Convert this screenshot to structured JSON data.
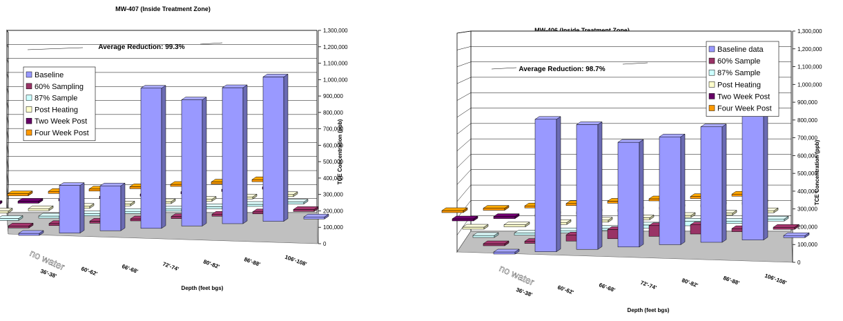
{
  "chart_data": [
    {
      "type": "bar",
      "title": "MW-407 (Inside Treatment Zone)",
      "annotation": "Average Reduction: 99.3%",
      "xlabel": "Depth (feet bgs)",
      "ylabel": "TCE Concentration (ppb)",
      "ylim": [
        0,
        1300000
      ],
      "yticks": [
        "0",
        "100,000",
        "200,000",
        "300,000",
        "400,000",
        "500,000",
        "600,000",
        "700,000",
        "800,000",
        "900,000",
        "1,000,000",
        "1,100,000",
        "1,200,000",
        "1,300,000"
      ],
      "categories": [
        "",
        "36'-38'",
        "60'-62'",
        "66'-68'",
        "72'-74'",
        "80'-82'",
        "86'-88'",
        "106'-108'"
      ],
      "floor_note": "no water",
      "legend_position": "left",
      "series": [
        {
          "name": "Baseline",
          "color": "#9999ff",
          "values": [
            0,
            340000,
            320000,
            1000000,
            900000,
            970000,
            1030000,
            0
          ]
        },
        {
          "name": "60% Sampling",
          "color": "#993366",
          "values": [
            0,
            0,
            0,
            0,
            0,
            0,
            0,
            0
          ]
        },
        {
          "name": "87% Sample",
          "color": "#ccffff",
          "values": [
            0,
            0,
            0,
            0,
            0,
            0,
            0,
            0
          ]
        },
        {
          "name": "Post Heating",
          "color": "#ffffcc",
          "values": [
            0,
            0,
            0,
            0,
            0,
            0,
            0,
            0
          ]
        },
        {
          "name": "Two Week Post",
          "color": "#660066",
          "values": [
            0,
            0,
            0,
            0,
            0,
            0,
            0,
            0
          ]
        },
        {
          "name": "Four Week Post",
          "color": "#ff9900",
          "values": [
            0,
            0,
            0,
            0,
            0,
            0,
            0,
            0
          ]
        }
      ]
    },
    {
      "type": "bar",
      "title": "MW-406 (Inside Treatment Zone)",
      "annotation": "Average Reduction: 98.7%",
      "xlabel": "Depth (feet bgs)",
      "ylabel": "TCE Concentration (ppb)",
      "ylim": [
        0,
        1300000
      ],
      "yticks": [
        "0",
        "100,000",
        "200,000",
        "300,000",
        "400,000",
        "500,000",
        "600,000",
        "700,000",
        "800,000",
        "900,000",
        "1,000,000",
        "1,100,000",
        "1,200,000",
        "1,300,000"
      ],
      "categories": [
        "",
        "36'-38'",
        "60'-62'",
        "66'-68'",
        "72'-74'",
        "80'-82'",
        "86'-88'",
        "106'-108'"
      ],
      "floor_note": "no water",
      "legend_position": "top-right",
      "series": [
        {
          "name": "Baseline data",
          "color": "#9999ff",
          "values": [
            0,
            860000,
            810000,
            680000,
            700000,
            750000,
            850000,
            0
          ]
        },
        {
          "name": "60% Sample",
          "color": "#993366",
          "values": [
            0,
            0,
            40000,
            60000,
            70000,
            60000,
            20000,
            0
          ]
        },
        {
          "name": "87% Sample",
          "color": "#ccffff",
          "values": [
            0,
            0,
            10000,
            10000,
            20000,
            30000,
            15000,
            0
          ]
        },
        {
          "name": "Post Heating",
          "color": "#ffffcc",
          "values": [
            0,
            0,
            0,
            0,
            0,
            0,
            0,
            0
          ]
        },
        {
          "name": "Two Week Post",
          "color": "#660066",
          "values": [
            0,
            0,
            0,
            0,
            0,
            0,
            0,
            0
          ]
        },
        {
          "name": "Four Week Post",
          "color": "#ff9900",
          "values": [
            0,
            0,
            0,
            0,
            0,
            0,
            0,
            0
          ]
        }
      ]
    }
  ]
}
